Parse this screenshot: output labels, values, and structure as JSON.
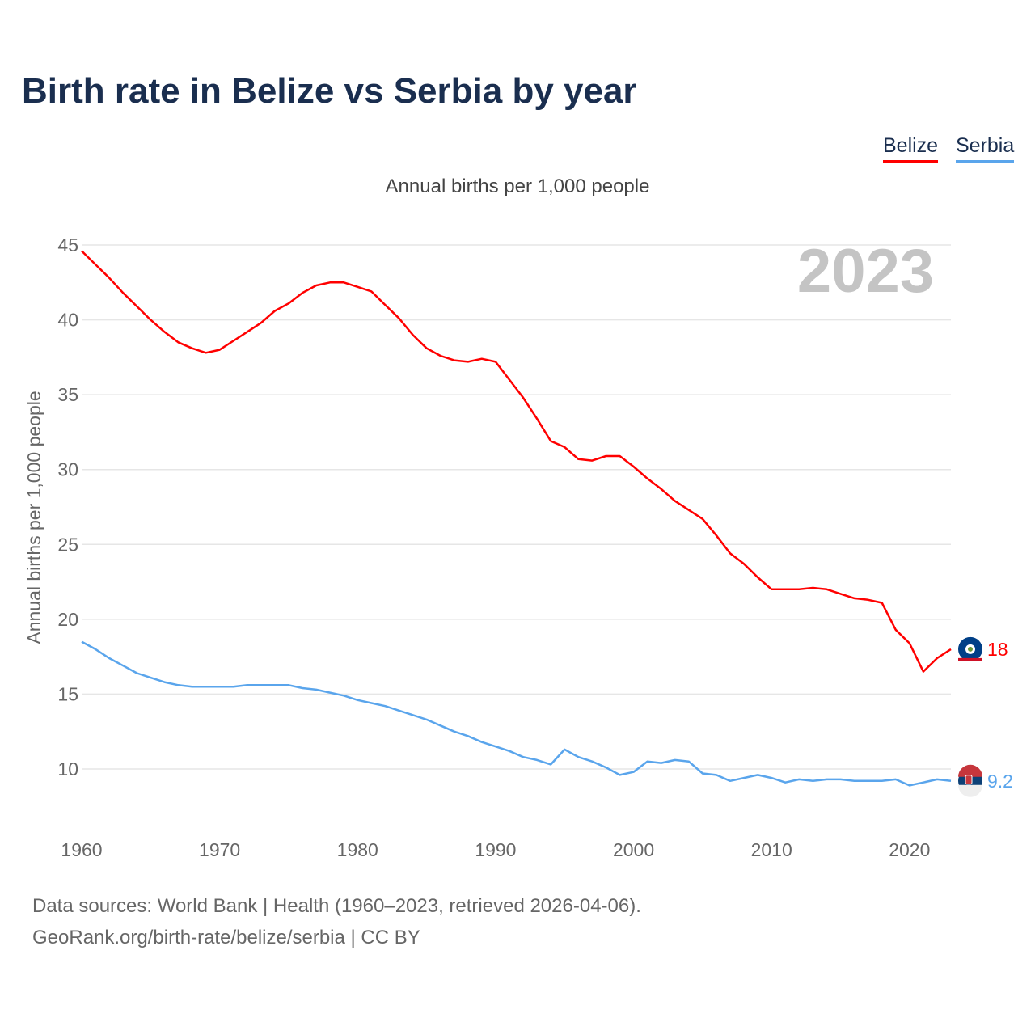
{
  "chart_data": {
    "type": "line",
    "title": "Birth rate in Belize vs Serbia by year",
    "subtitle": "Annual births per 1,000 people",
    "ylabel": "Annual births per 1,000 people",
    "xlabel": "",
    "year_watermark": "2023",
    "xlim": [
      1960,
      2023
    ],
    "ylim": [
      6,
      45
    ],
    "yticks": [
      10,
      15,
      20,
      25,
      30,
      35,
      40,
      45
    ],
    "xticks": [
      1960,
      1970,
      1980,
      1990,
      2000,
      2010,
      2020
    ],
    "grid": true,
    "legend_position": "top-right",
    "x": [
      1960,
      1961,
      1962,
      1963,
      1964,
      1965,
      1966,
      1967,
      1968,
      1969,
      1970,
      1971,
      1972,
      1973,
      1974,
      1975,
      1976,
      1977,
      1978,
      1979,
      1980,
      1981,
      1982,
      1983,
      1984,
      1985,
      1986,
      1987,
      1988,
      1989,
      1990,
      1991,
      1992,
      1993,
      1994,
      1995,
      1996,
      1997,
      1998,
      1999,
      2000,
      2001,
      2002,
      2003,
      2004,
      2005,
      2006,
      2007,
      2008,
      2009,
      2010,
      2011,
      2012,
      2013,
      2014,
      2015,
      2016,
      2017,
      2018,
      2019,
      2020,
      2021,
      2022,
      2023
    ],
    "series": [
      {
        "name": "Belize",
        "color": "#ff0000",
        "end_label": "18",
        "values": [
          44.6,
          43.7,
          42.8,
          41.8,
          40.9,
          40.0,
          39.2,
          38.5,
          38.1,
          37.8,
          38.0,
          38.6,
          39.2,
          39.8,
          40.6,
          41.1,
          41.8,
          42.3,
          42.5,
          42.5,
          42.2,
          41.9,
          41.0,
          40.1,
          39.0,
          38.1,
          37.6,
          37.3,
          37.2,
          37.4,
          37.2,
          36.0,
          34.8,
          33.4,
          31.9,
          31.5,
          30.7,
          30.6,
          30.9,
          30.9,
          30.2,
          29.4,
          28.7,
          27.9,
          27.3,
          26.7,
          25.6,
          24.4,
          23.7,
          22.8,
          22.0,
          22.0,
          22.0,
          22.1,
          22.0,
          21.7,
          21.4,
          21.3,
          21.1,
          19.3,
          18.4,
          16.5,
          17.4,
          18.0
        ]
      },
      {
        "name": "Serbia",
        "color": "#5aa5ec",
        "end_label": "9.2",
        "values": [
          18.5,
          18.0,
          17.4,
          16.9,
          16.4,
          16.1,
          15.8,
          15.6,
          15.5,
          15.5,
          15.5,
          15.5,
          15.6,
          15.6,
          15.6,
          15.6,
          15.4,
          15.3,
          15.1,
          14.9,
          14.6,
          14.4,
          14.2,
          13.9,
          13.6,
          13.3,
          12.9,
          12.5,
          12.2,
          11.8,
          11.5,
          11.2,
          10.8,
          10.6,
          10.3,
          11.3,
          10.8,
          10.5,
          10.1,
          9.6,
          9.8,
          10.5,
          10.4,
          10.6,
          10.5,
          9.7,
          9.6,
          9.2,
          9.4,
          9.6,
          9.4,
          9.1,
          9.3,
          9.2,
          9.3,
          9.3,
          9.2,
          9.2,
          9.2,
          9.3,
          8.9,
          9.1,
          9.3,
          9.2
        ]
      }
    ]
  },
  "footer": {
    "source": "Data sources: World Bank | Health (1960–2023, retrieved 2026-04-06).",
    "credit": "GeoRank.org/birth-rate/belize/serbia | CC BY"
  }
}
